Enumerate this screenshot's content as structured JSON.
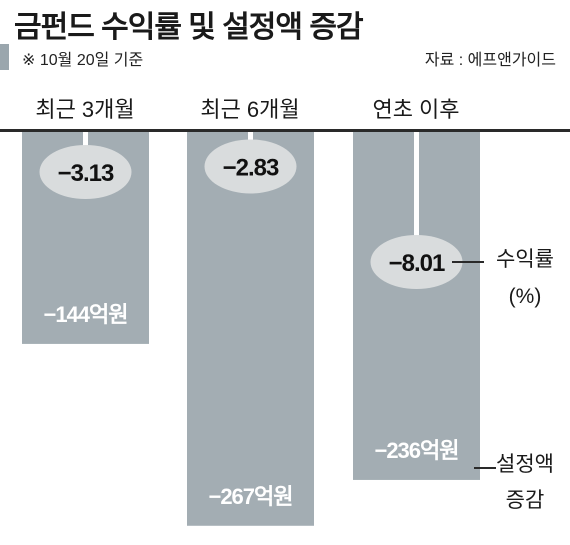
{
  "header": {
    "title": "금펀드 수익률 및 설정액 증감",
    "note": "※ 10월 20일 기준",
    "source": "자료 : 에프앤가이드"
  },
  "legend": {
    "return_label": "수익률",
    "return_unit": "(%)",
    "flow_label_line1": "설정액",
    "flow_label_line2": "증감"
  },
  "colors": {
    "bar": "#a3adb3",
    "bubble": "#d9dcdd",
    "stem": "#ffffff",
    "axis": "#2a2a2a"
  },
  "chart_data": {
    "type": "bar",
    "categories": [
      "최근 3개월",
      "최근 6개월",
      "연초 이후"
    ],
    "series": [
      {
        "name": "수익률",
        "unit": "%",
        "values": [
          -3.13,
          -2.83,
          -8.01
        ],
        "labels": [
          "−3.13",
          "−2.83",
          "−8.01"
        ]
      },
      {
        "name": "설정액 증감",
        "unit": "억원",
        "values": [
          -144,
          -267,
          -236
        ],
        "labels": [
          "−144억원",
          "−267억원",
          "−236억원"
        ]
      }
    ],
    "title": "금펀드 수익률 및 설정액 증감",
    "xlabel": "",
    "ylabel": "",
    "ylim": [
      -280,
      0
    ]
  }
}
